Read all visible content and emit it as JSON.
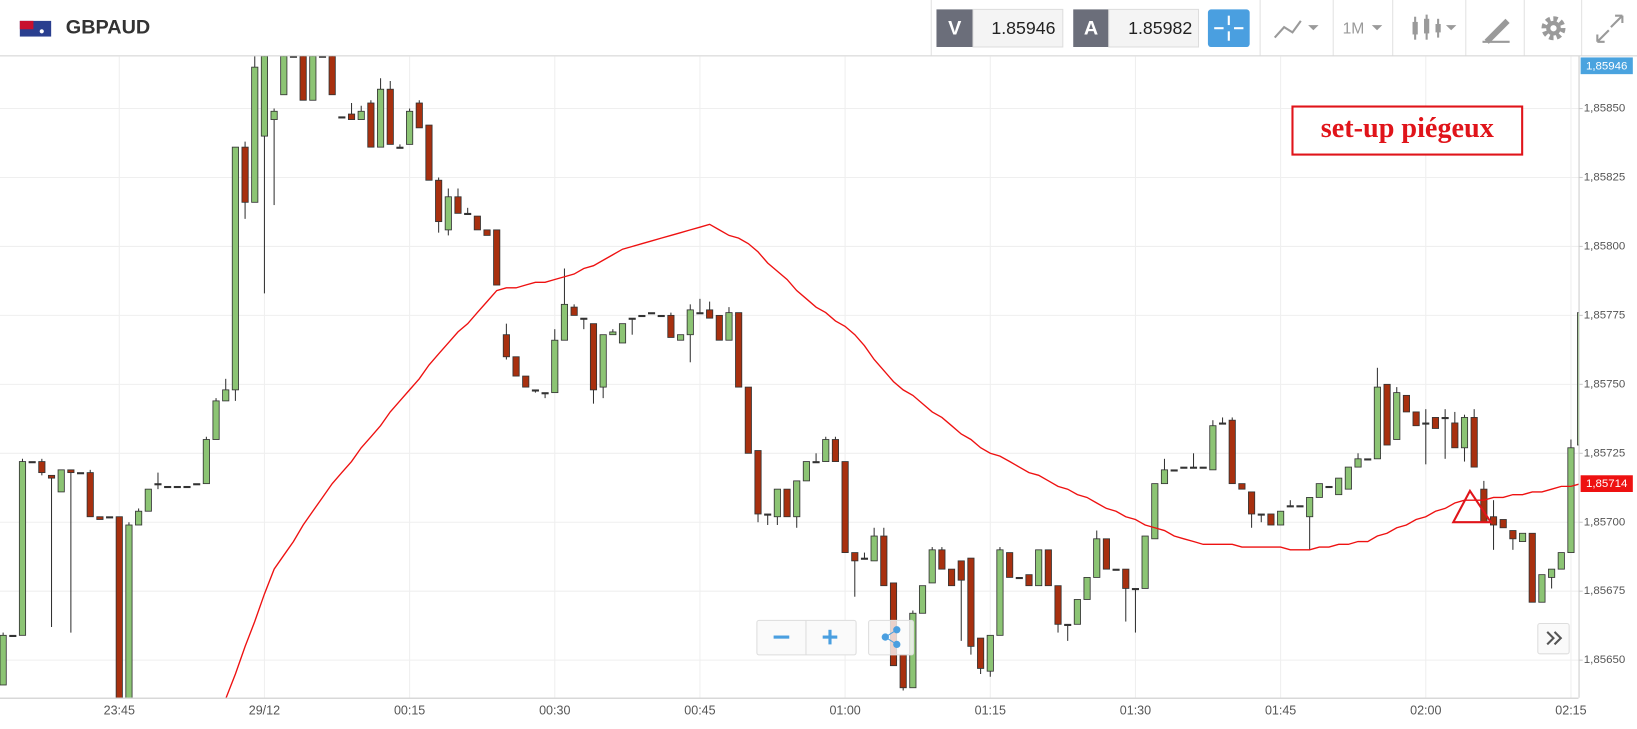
{
  "header": {
    "symbol": "GBPAUD",
    "bid_label": "V",
    "bid": "1.85946",
    "ask_label": "A",
    "ask": "1.85982",
    "timeframe": "1M"
  },
  "chart_data": {
    "type": "candlestick",
    "annotation": "set-up piégeux",
    "up_color": "#8cc474",
    "down_color": "#a8300f",
    "ma_color": "#ee1111",
    "ylim": [
      1.856364,
      1.858689
    ],
    "yticks": [
      {
        "value": 1.8565,
        "label": "1,85650"
      },
      {
        "value": 1.85675,
        "label": "1,85675"
      },
      {
        "value": 1.857,
        "label": "1,85700"
      },
      {
        "value": 1.85725,
        "label": "1,85725"
      },
      {
        "value": 1.8575,
        "label": "1,85750"
      },
      {
        "value": 1.85775,
        "label": "1,85775"
      },
      {
        "value": 1.858,
        "label": "1,85800"
      },
      {
        "value": 1.85825,
        "label": "1,85825"
      },
      {
        "value": 1.8585,
        "label": "1,85850"
      }
    ],
    "grid": true,
    "bid_tag": "1,85946",
    "current_tag": {
      "value": 1.85714,
      "label": "1,85714"
    },
    "categories": [
      null,
      null,
      null,
      null,
      null,
      null,
      null,
      null,
      null,
      null,
      null,
      null,
      "23:45",
      null,
      null,
      null,
      null,
      null,
      null,
      null,
      null,
      null,
      null,
      null,
      null,
      null,
      null,
      "29/12",
      null,
      null,
      null,
      null,
      null,
      null,
      null,
      null,
      null,
      null,
      null,
      null,
      null,
      null,
      "00:15",
      null,
      null,
      null,
      null,
      null,
      null,
      null,
      null,
      null,
      null,
      null,
      null,
      null,
      null,
      "00:30",
      null,
      null,
      null,
      null,
      null,
      null,
      null,
      null,
      null,
      null,
      null,
      null,
      null,
      null,
      "00:45",
      null,
      null,
      null,
      null,
      null,
      null,
      null,
      null,
      null,
      null,
      null,
      null,
      null,
      null,
      "01:00",
      null,
      null,
      null,
      null,
      null,
      null,
      null,
      null,
      null,
      null,
      null,
      null,
      null,
      null,
      "01:15",
      null,
      null,
      null,
      null,
      null,
      null,
      null,
      null,
      null,
      null,
      null,
      null,
      null,
      null,
      "01:30",
      null,
      null,
      null,
      null,
      null,
      null,
      null,
      null,
      null,
      null,
      null,
      null,
      null,
      null,
      "01:45",
      null,
      null,
      null,
      null,
      null,
      null,
      null,
      null,
      null,
      null,
      null,
      null,
      null,
      null,
      "02:00",
      null,
      null,
      null,
      null,
      null,
      null,
      null,
      null,
      null,
      null,
      null,
      null,
      null,
      null,
      "02:15",
      null
    ],
    "ohlc": [
      [
        1.85641,
        1.8566,
        1.85641,
        1.85659
      ],
      [
        1.85659,
        1.85659,
        1.85659,
        1.85659
      ],
      [
        1.85659,
        1.85723,
        1.85659,
        1.85722
      ],
      [
        1.85722,
        1.85722,
        1.85722,
        1.85722
      ],
      [
        1.85722,
        1.85723,
        1.85717,
        1.85718
      ],
      [
        1.85717,
        1.85717,
        1.85662,
        1.85716
      ],
      [
        1.85711,
        1.85719,
        1.85711,
        1.85719
      ],
      [
        1.85719,
        1.85719,
        1.8566,
        1.85718
      ],
      [
        1.85718,
        1.85718,
        1.85718,
        1.85718
      ],
      [
        1.85718,
        1.85719,
        1.85702,
        1.85702
      ],
      [
        1.85702,
        1.85702,
        1.85701,
        1.85701
      ],
      [
        1.85702,
        1.85702,
        1.85702,
        1.85702
      ],
      [
        1.85702,
        1.85702,
        1.85636,
        1.85636
      ],
      [
        1.85636,
        1.857,
        1.85636,
        1.85699
      ],
      [
        1.85699,
        1.85705,
        1.85699,
        1.85704
      ],
      [
        1.85704,
        1.85712,
        1.85704,
        1.85712
      ],
      [
        1.85714,
        1.85718,
        1.85712,
        1.85714
      ],
      [
        1.85713,
        1.85713,
        1.85713,
        1.85713
      ],
      [
        1.85713,
        1.85713,
        1.85713,
        1.85713
      ],
      [
        1.85713,
        1.85713,
        1.85713,
        1.85713
      ],
      [
        1.85714,
        1.85714,
        1.85714,
        1.85714
      ],
      [
        1.85714,
        1.85731,
        1.85714,
        1.8573
      ],
      [
        1.8573,
        1.85745,
        1.8573,
        1.85744
      ],
      [
        1.85744,
        1.85752,
        1.85744,
        1.85748
      ],
      [
        1.85748,
        1.85836,
        1.85744,
        1.85836
      ],
      [
        1.85836,
        1.85838,
        1.8581,
        1.85816
      ],
      [
        1.85816,
        1.85869,
        1.85816,
        1.85865
      ],
      [
        1.8584,
        1.85869,
        1.85783,
        1.85869
      ],
      [
        1.85846,
        1.8585,
        1.85815,
        1.85849
      ],
      [
        1.85855,
        1.85869,
        1.85855,
        1.85869
      ],
      [
        1.85869,
        1.85869,
        1.85869,
        1.85869
      ],
      [
        1.85869,
        1.85869,
        1.85853,
        1.85853
      ],
      [
        1.85853,
        1.85869,
        1.85853,
        1.85869
      ],
      [
        1.85869,
        1.85869,
        1.85869,
        1.85869
      ],
      [
        1.85869,
        1.85869,
        1.85855,
        1.85855
      ],
      [
        1.85847,
        1.85847,
        1.85847,
        1.85847
      ],
      [
        1.85848,
        1.85852,
        1.85846,
        1.85846
      ],
      [
        1.85846,
        1.85851,
        1.85846,
        1.85849
      ],
      [
        1.85852,
        1.85853,
        1.85836,
        1.85836
      ],
      [
        1.85836,
        1.85861,
        1.85836,
        1.85857
      ],
      [
        1.85857,
        1.8586,
        1.85837,
        1.85837
      ],
      [
        1.85836,
        1.85837,
        1.85836,
        1.85836
      ],
      [
        1.85837,
        1.8585,
        1.85837,
        1.85849
      ],
      [
        1.85852,
        1.85853,
        1.85843,
        1.85843
      ],
      [
        1.85844,
        1.85844,
        1.85824,
        1.85824
      ],
      [
        1.85824,
        1.85825,
        1.85805,
        1.85809
      ],
      [
        1.85806,
        1.85821,
        1.85804,
        1.85818
      ],
      [
        1.85818,
        1.85821,
        1.85812,
        1.85812
      ],
      [
        1.85812,
        1.85814,
        1.85812,
        1.85812
      ],
      [
        1.85811,
        1.85811,
        1.85806,
        1.85806
      ],
      [
        1.85806,
        1.85806,
        1.85804,
        1.85804
      ],
      [
        1.85806,
        1.85806,
        1.85786,
        1.85786
      ],
      [
        1.85768,
        1.85772,
        1.85759,
        1.8576
      ],
      [
        1.8576,
        1.8576,
        1.85753,
        1.85753
      ],
      [
        1.85753,
        1.85753,
        1.85749,
        1.85749
      ],
      [
        1.85748,
        1.85748,
        1.85747,
        1.85748
      ],
      [
        1.85747,
        1.85747,
        1.85745,
        1.85747
      ],
      [
        1.85747,
        1.8577,
        1.85747,
        1.85766
      ],
      [
        1.85766,
        1.85792,
        1.85766,
        1.85779
      ],
      [
        1.85778,
        1.85779,
        1.85775,
        1.85775
      ],
      [
        1.85774,
        1.85774,
        1.8577,
        1.85774
      ],
      [
        1.85772,
        1.85772,
        1.85743,
        1.85748
      ],
      [
        1.85749,
        1.85768,
        1.85745,
        1.85768
      ],
      [
        1.85768,
        1.8577,
        1.85768,
        1.85769
      ],
      [
        1.85765,
        1.85772,
        1.85765,
        1.85772
      ],
      [
        1.85774,
        1.85774,
        1.85768,
        1.85774
      ],
      [
        1.85775,
        1.85775,
        1.85775,
        1.85775
      ],
      [
        1.85776,
        1.85776,
        1.85776,
        1.85776
      ],
      [
        1.85775,
        1.85775,
        1.85775,
        1.85775
      ],
      [
        1.85775,
        1.85776,
        1.85767,
        1.85767
      ],
      [
        1.85766,
        1.85768,
        1.85766,
        1.85768
      ],
      [
        1.85768,
        1.85779,
        1.85758,
        1.85777
      ],
      [
        1.85776,
        1.85781,
        1.85776,
        1.85776
      ],
      [
        1.85777,
        1.8578,
        1.85774,
        1.85774
      ],
      [
        1.85775,
        1.85775,
        1.85766,
        1.85766
      ],
      [
        1.85766,
        1.85778,
        1.85766,
        1.85776
      ],
      [
        1.85776,
        1.85776,
        1.85749,
        1.85749
      ],
      [
        1.85749,
        1.85749,
        1.85725,
        1.85725
      ],
      [
        1.85726,
        1.85726,
        1.857,
        1.85703
      ],
      [
        1.85703,
        1.85703,
        1.85699,
        1.85703
      ],
      [
        1.85702,
        1.85712,
        1.85699,
        1.85712
      ],
      [
        1.85712,
        1.85712,
        1.85702,
        1.85702
      ],
      [
        1.85702,
        1.85715,
        1.85698,
        1.85715
      ],
      [
        1.85715,
        1.85722,
        1.85715,
        1.85722
      ],
      [
        1.85722,
        1.85725,
        1.85722,
        1.85722
      ],
      [
        1.85722,
        1.85731,
        1.85722,
        1.8573
      ],
      [
        1.8573,
        1.85731,
        1.85722,
        1.85722
      ],
      [
        1.85722,
        1.85722,
        1.85689,
        1.85689
      ],
      [
        1.85689,
        1.85689,
        1.85673,
        1.85686
      ],
      [
        1.85687,
        1.85689,
        1.85687,
        1.85687
      ],
      [
        1.85686,
        1.85698,
        1.85686,
        1.85695
      ],
      [
        1.85695,
        1.85698,
        1.85677,
        1.85677
      ],
      [
        1.85678,
        1.85678,
        1.85648,
        1.85648
      ],
      [
        1.85652,
        1.85652,
        1.85639,
        1.8564
      ],
      [
        1.8564,
        1.85668,
        1.8564,
        1.85667
      ],
      [
        1.85667,
        1.85677,
        1.85667,
        1.85677
      ],
      [
        1.85678,
        1.85691,
        1.85678,
        1.8569
      ],
      [
        1.8569,
        1.85691,
        1.85683,
        1.85683
      ],
      [
        1.85683,
        1.85683,
        1.85677,
        1.85677
      ],
      [
        1.85686,
        1.85686,
        1.85657,
        1.85679
      ],
      [
        1.85687,
        1.85687,
        1.85652,
        1.85655
      ],
      [
        1.85658,
        1.85658,
        1.85645,
        1.85647
      ],
      [
        1.85646,
        1.85659,
        1.85644,
        1.85659
      ],
      [
        1.85659,
        1.85691,
        1.85659,
        1.8569
      ],
      [
        1.85689,
        1.85689,
        1.8568,
        1.8568
      ],
      [
        1.8568,
        1.8568,
        1.8568,
        1.8568
      ],
      [
        1.85681,
        1.85681,
        1.85677,
        1.85677
      ],
      [
        1.85677,
        1.8569,
        1.85677,
        1.8569
      ],
      [
        1.8569,
        1.8569,
        1.85677,
        1.85677
      ],
      [
        1.85677,
        1.85677,
        1.8566,
        1.85663
      ],
      [
        1.85663,
        1.85663,
        1.85657,
        1.85663
      ],
      [
        1.85663,
        1.85672,
        1.85663,
        1.85672
      ],
      [
        1.85672,
        1.8568,
        1.85672,
        1.8568
      ],
      [
        1.8568,
        1.85697,
        1.8568,
        1.85694
      ],
      [
        1.85694,
        1.85694,
        1.85683,
        1.85683
      ],
      [
        1.85683,
        1.85683,
        1.85683,
        1.85683
      ],
      [
        1.85683,
        1.85683,
        1.85664,
        1.85676
      ],
      [
        1.85676,
        1.85676,
        1.8566,
        1.85676
      ],
      [
        1.85676,
        1.85695,
        1.85676,
        1.85695
      ],
      [
        1.85694,
        1.85714,
        1.85694,
        1.85714
      ],
      [
        1.85714,
        1.85723,
        1.85714,
        1.85719
      ],
      [
        1.85719,
        1.85719,
        1.85719,
        1.85719
      ],
      [
        1.8572,
        1.8572,
        1.8572,
        1.8572
      ],
      [
        1.8572,
        1.85725,
        1.8572,
        1.8572
      ],
      [
        1.8572,
        1.8572,
        1.8572,
        1.8572
      ],
      [
        1.85719,
        1.85737,
        1.85719,
        1.85735
      ],
      [
        1.85736,
        1.85738,
        1.85736,
        1.85736
      ],
      [
        1.85737,
        1.85738,
        1.85714,
        1.85714
      ],
      [
        1.85714,
        1.85714,
        1.85712,
        1.85712
      ],
      [
        1.85711,
        1.85711,
        1.85698,
        1.85703
      ],
      [
        1.85703,
        1.85703,
        1.857,
        1.85703
      ],
      [
        1.85703,
        1.85703,
        1.85699,
        1.85699
      ],
      [
        1.85699,
        1.85704,
        1.85699,
        1.85704
      ],
      [
        1.85706,
        1.85708,
        1.85706,
        1.85706
      ],
      [
        1.85706,
        1.85706,
        1.85706,
        1.85706
      ],
      [
        1.85702,
        1.85709,
        1.8569,
        1.85709
      ],
      [
        1.85709,
        1.85714,
        1.85709,
        1.85714
      ],
      [
        1.85713,
        1.85713,
        1.85713,
        1.85713
      ],
      [
        1.8571,
        1.85716,
        1.8571,
        1.85716
      ],
      [
        1.85712,
        1.8572,
        1.85712,
        1.8572
      ],
      [
        1.8572,
        1.85725,
        1.8572,
        1.85723
      ],
      [
        1.85723,
        1.85723,
        1.85723,
        1.85723
      ],
      [
        1.85723,
        1.85756,
        1.85723,
        1.85749
      ],
      [
        1.8575,
        1.8575,
        1.85728,
        1.85728
      ],
      [
        1.8573,
        1.85749,
        1.8573,
        1.85747
      ],
      [
        1.85746,
        1.85746,
        1.8574,
        1.8574
      ],
      [
        1.8574,
        1.8574,
        1.85735,
        1.85735
      ],
      [
        1.85736,
        1.85741,
        1.85721,
        1.85736
      ],
      [
        1.85738,
        1.85738,
        1.85734,
        1.85734
      ],
      [
        1.85738,
        1.85741,
        1.85723,
        1.85738
      ],
      [
        1.85736,
        1.8574,
        1.85727,
        1.85727
      ],
      [
        1.85727,
        1.85739,
        1.85722,
        1.85738
      ],
      [
        1.85738,
        1.85741,
        1.8572,
        1.8572
      ],
      [
        1.85712,
        1.85715,
        1.857,
        1.857
      ],
      [
        1.85702,
        1.85708,
        1.8569,
        1.85699
      ],
      [
        1.85701,
        1.85701,
        1.85698,
        1.85698
      ],
      [
        1.85697,
        1.85697,
        1.8569,
        1.85694
      ],
      [
        1.85693,
        1.85696,
        1.85693,
        1.85696
      ],
      [
        1.85696,
        1.85696,
        1.85671,
        1.85671
      ],
      [
        1.85671,
        1.85681,
        1.85671,
        1.85681
      ],
      [
        1.8568,
        1.85683,
        1.85676,
        1.85683
      ],
      [
        1.85683,
        1.85689,
        1.85683,
        1.85689
      ],
      [
        1.85689,
        1.8573,
        1.85689,
        1.85727
      ],
      [
        1.85728,
        1.85776,
        1.85728,
        1.85776
      ]
    ],
    "ma_values": [
      null,
      null,
      null,
      null,
      null,
      null,
      null,
      null,
      null,
      null,
      null,
      null,
      null,
      null,
      null,
      null,
      null,
      null,
      null,
      null,
      null,
      null,
      null,
      1.85636,
      1.85645,
      1.85655,
      1.85664,
      1.85674,
      1.85683,
      1.85688,
      1.85693,
      1.85699,
      1.85704,
      1.85709,
      1.85714,
      1.85718,
      1.85722,
      1.85727,
      1.85731,
      1.85735,
      1.8574,
      1.85744,
      1.85748,
      1.85752,
      1.85757,
      1.85761,
      1.85765,
      1.85769,
      1.85772,
      1.85776,
      1.8578,
      1.85784,
      1.85785,
      1.85785,
      1.85786,
      1.85787,
      1.85787,
      1.85788,
      1.85789,
      1.8579,
      1.85792,
      1.85793,
      1.85795,
      1.85797,
      1.85799,
      1.858,
      1.85801,
      1.85802,
      1.85803,
      1.85804,
      1.85805,
      1.85806,
      1.85807,
      1.85808,
      1.85806,
      1.85804,
      1.85803,
      1.85801,
      1.85798,
      1.85794,
      1.85791,
      1.85788,
      1.85784,
      1.85781,
      1.85778,
      1.85776,
      1.85773,
      1.85771,
      1.85768,
      1.85764,
      1.85759,
      1.85755,
      1.85751,
      1.85748,
      1.85746,
      1.85743,
      1.8574,
      1.85738,
      1.85735,
      1.85732,
      1.8573,
      1.85727,
      1.85725,
      1.85724,
      1.85722,
      1.8572,
      1.85718,
      1.85717,
      1.85715,
      1.85713,
      1.85712,
      1.8571,
      1.85709,
      1.85707,
      1.85705,
      1.85704,
      1.85702,
      1.85701,
      1.85699,
      1.85698,
      1.85697,
      1.85695,
      1.85694,
      1.85693,
      1.85692,
      1.85692,
      1.85692,
      1.85692,
      1.85691,
      1.85691,
      1.85691,
      1.85691,
      1.85691,
      1.8569,
      1.8569,
      1.8569,
      1.85691,
      1.85691,
      1.85692,
      1.85692,
      1.85693,
      1.85693,
      1.85695,
      1.85696,
      1.85698,
      1.85699,
      1.85701,
      1.85702,
      1.85704,
      1.85705,
      1.85707,
      1.85708,
      1.85708,
      1.85708,
      1.85709,
      1.85709,
      1.8571,
      1.8571,
      1.85711,
      1.85711,
      1.85712,
      1.85713,
      1.85713,
      1.85714
    ]
  }
}
